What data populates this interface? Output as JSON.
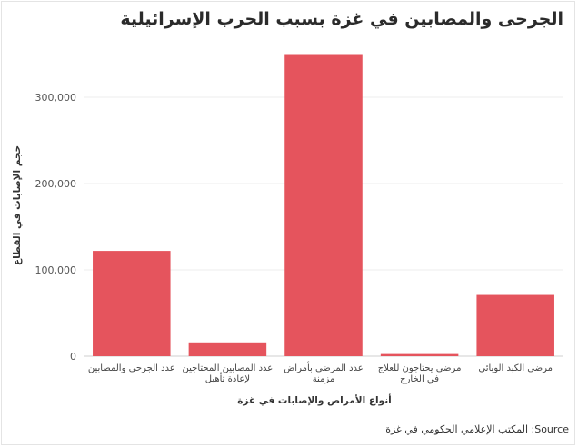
{
  "chart_data": {
    "type": "bar",
    "title": "الجرحى والمصابين في غزة بسبب الحرب الإسرائيلية",
    "xlabel": "أنواع الأمراض والإصابات في غزة",
    "ylabel": "حجم الإصابات في القطاع",
    "source": "المكتب الإعلامي الحكومي في غزة :Source",
    "categories": [
      [
        "عدد الجرحى والمصابين"
      ],
      [
        "عدد المصابين المحتاجين",
        "لإعادة تأهيل"
      ],
      [
        "عدد المرضى بأمراض",
        "مزمنة"
      ],
      [
        "مرضى يحتاجون للعلاج",
        "في الخارج"
      ],
      [
        "مرضى الكبد الوبائي"
      ]
    ],
    "values": [
      122000,
      16000,
      350000,
      2500,
      71000
    ],
    "ylim": [
      0,
      360000
    ],
    "yticks": [
      0,
      100000,
      200000,
      300000
    ],
    "ytick_labels": [
      "0",
      "100,000",
      "200,000",
      "300,000"
    ],
    "bar_color": "#e5545d",
    "grid": true
  }
}
